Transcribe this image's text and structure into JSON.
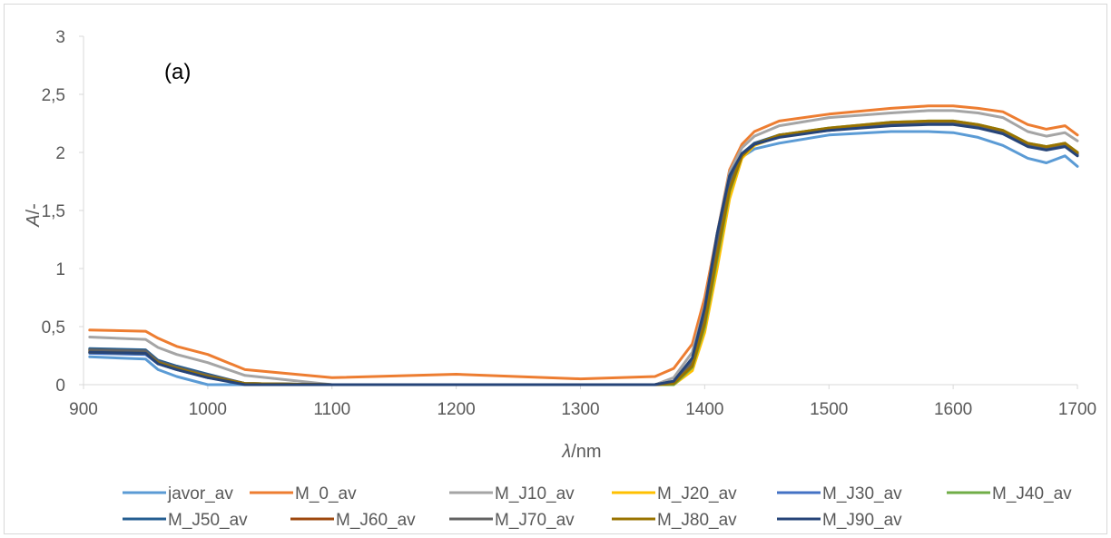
{
  "chart_data": {
    "type": "line",
    "annotation": "(a)",
    "xlabel_italic": "λ",
    "xlabel_rest": "/nm",
    "ylabel_italic": "A",
    "ylabel_rest": "/-",
    "xlim": [
      900,
      1700
    ],
    "ylim": [
      0,
      3
    ],
    "x_ticks": [
      900,
      1000,
      1100,
      1200,
      1300,
      1400,
      1500,
      1600,
      1700
    ],
    "x_tick_labels": [
      "900",
      "1000",
      "1100",
      "1200",
      "1300",
      "1400",
      "1500",
      "1600",
      "1700"
    ],
    "y_ticks": [
      0,
      0.5,
      1,
      1.5,
      2,
      2.5,
      3
    ],
    "y_tick_labels": [
      "0",
      "0,5",
      "1",
      "1,5",
      "2",
      "2,5",
      "3"
    ],
    "grid": false,
    "legend_position": "bottom",
    "x": [
      905,
      950,
      960,
      975,
      1000,
      1030,
      1100,
      1200,
      1300,
      1360,
      1375,
      1390,
      1400,
      1410,
      1420,
      1430,
      1440,
      1460,
      1500,
      1550,
      1580,
      1600,
      1620,
      1640,
      1660,
      1675,
      1690,
      1700
    ],
    "series": [
      {
        "name": "javor_av",
        "color": "#5b9bd5",
        "width": 3,
        "values": [
          0.24,
          0.22,
          0.13,
          0.07,
          0.0,
          0.0,
          0.0,
          0.0,
          0.0,
          0.0,
          0.02,
          0.2,
          0.6,
          1.3,
          1.75,
          1.96,
          2.03,
          2.08,
          2.15,
          2.18,
          2.18,
          2.17,
          2.13,
          2.06,
          1.95,
          1.91,
          1.97,
          1.88
        ]
      },
      {
        "name": "M_0_av",
        "color": "#ed7d31",
        "width": 3,
        "values": [
          0.47,
          0.46,
          0.4,
          0.33,
          0.26,
          0.13,
          0.06,
          0.09,
          0.05,
          0.07,
          0.14,
          0.35,
          0.75,
          1.3,
          1.85,
          2.07,
          2.18,
          2.27,
          2.33,
          2.38,
          2.4,
          2.4,
          2.38,
          2.35,
          2.24,
          2.2,
          2.23,
          2.15
        ]
      },
      {
        "name": "M_J10_av",
        "color": "#a5a5a5",
        "width": 3,
        "values": [
          0.41,
          0.39,
          0.32,
          0.26,
          0.19,
          0.08,
          0.0,
          0.0,
          0.0,
          0.0,
          0.06,
          0.28,
          0.68,
          1.3,
          1.83,
          2.04,
          2.14,
          2.23,
          2.3,
          2.34,
          2.36,
          2.36,
          2.34,
          2.3,
          2.18,
          2.14,
          2.17,
          2.1
        ]
      },
      {
        "name": "M_J20_av",
        "color": "#ffc000",
        "width": 3,
        "values": [
          0.28,
          0.27,
          0.19,
          0.14,
          0.07,
          0.01,
          0.0,
          0.0,
          0.0,
          0.0,
          0.0,
          0.12,
          0.45,
          1.0,
          1.6,
          1.95,
          2.06,
          2.14,
          2.2,
          2.25,
          2.26,
          2.26,
          2.23,
          2.18,
          2.07,
          2.04,
          2.07,
          1.99
        ]
      },
      {
        "name": "M_J30_av",
        "color": "#4472c4",
        "width": 3,
        "values": [
          0.27,
          0.26,
          0.18,
          0.13,
          0.06,
          0.01,
          0.0,
          0.0,
          0.0,
          0.0,
          0.02,
          0.18,
          0.58,
          1.2,
          1.73,
          1.98,
          2.07,
          2.14,
          2.19,
          2.24,
          2.25,
          2.25,
          2.22,
          2.17,
          2.06,
          2.03,
          2.06,
          1.98
        ]
      },
      {
        "name": "M_J40_av",
        "color": "#70ad47",
        "width": 3,
        "values": [
          0.3,
          0.29,
          0.2,
          0.15,
          0.08,
          0.01,
          0.0,
          0.0,
          0.0,
          0.0,
          0.0,
          0.15,
          0.5,
          1.08,
          1.66,
          1.97,
          2.07,
          2.15,
          2.21,
          2.26,
          2.27,
          2.27,
          2.24,
          2.19,
          2.08,
          2.05,
          2.08,
          2.0
        ]
      },
      {
        "name": "M_J50_av",
        "color": "#255e91",
        "width": 3,
        "values": [
          0.31,
          0.3,
          0.21,
          0.16,
          0.09,
          0.01,
          0.0,
          0.0,
          0.0,
          0.0,
          0.03,
          0.22,
          0.64,
          1.28,
          1.78,
          1.99,
          2.08,
          2.15,
          2.2,
          2.24,
          2.25,
          2.25,
          2.22,
          2.17,
          2.06,
          2.04,
          2.07,
          1.99
        ]
      },
      {
        "name": "M_J60_av",
        "color": "#9e480e",
        "width": 3,
        "values": [
          0.29,
          0.28,
          0.2,
          0.14,
          0.08,
          0.01,
          0.0,
          0.0,
          0.0,
          0.0,
          0.01,
          0.17,
          0.55,
          1.15,
          1.7,
          1.97,
          2.07,
          2.14,
          2.2,
          2.25,
          2.26,
          2.26,
          2.23,
          2.18,
          2.07,
          2.04,
          2.07,
          1.99
        ]
      },
      {
        "name": "M_J70_av",
        "color": "#636363",
        "width": 3,
        "values": [
          0.3,
          0.29,
          0.2,
          0.15,
          0.08,
          0.01,
          0.0,
          0.0,
          0.0,
          0.0,
          0.02,
          0.19,
          0.58,
          1.2,
          1.72,
          1.98,
          2.07,
          2.14,
          2.2,
          2.25,
          2.26,
          2.26,
          2.23,
          2.18,
          2.07,
          2.04,
          2.07,
          1.99
        ]
      },
      {
        "name": "M_J80_av",
        "color": "#997300",
        "width": 3,
        "values": [
          0.28,
          0.27,
          0.19,
          0.14,
          0.07,
          0.01,
          0.0,
          0.0,
          0.0,
          0.0,
          0.01,
          0.16,
          0.53,
          1.12,
          1.68,
          1.97,
          2.07,
          2.15,
          2.21,
          2.26,
          2.27,
          2.27,
          2.24,
          2.19,
          2.08,
          2.05,
          2.08,
          2.0
        ]
      },
      {
        "name": "M_J90_av",
        "color": "#264478",
        "width": 3,
        "values": [
          0.28,
          0.27,
          0.18,
          0.13,
          0.06,
          0.0,
          0.0,
          0.0,
          0.0,
          0.0,
          0.03,
          0.23,
          0.66,
          1.3,
          1.8,
          1.99,
          2.07,
          2.13,
          2.19,
          2.23,
          2.24,
          2.24,
          2.21,
          2.16,
          2.05,
          2.02,
          2.05,
          1.97
        ]
      }
    ]
  }
}
